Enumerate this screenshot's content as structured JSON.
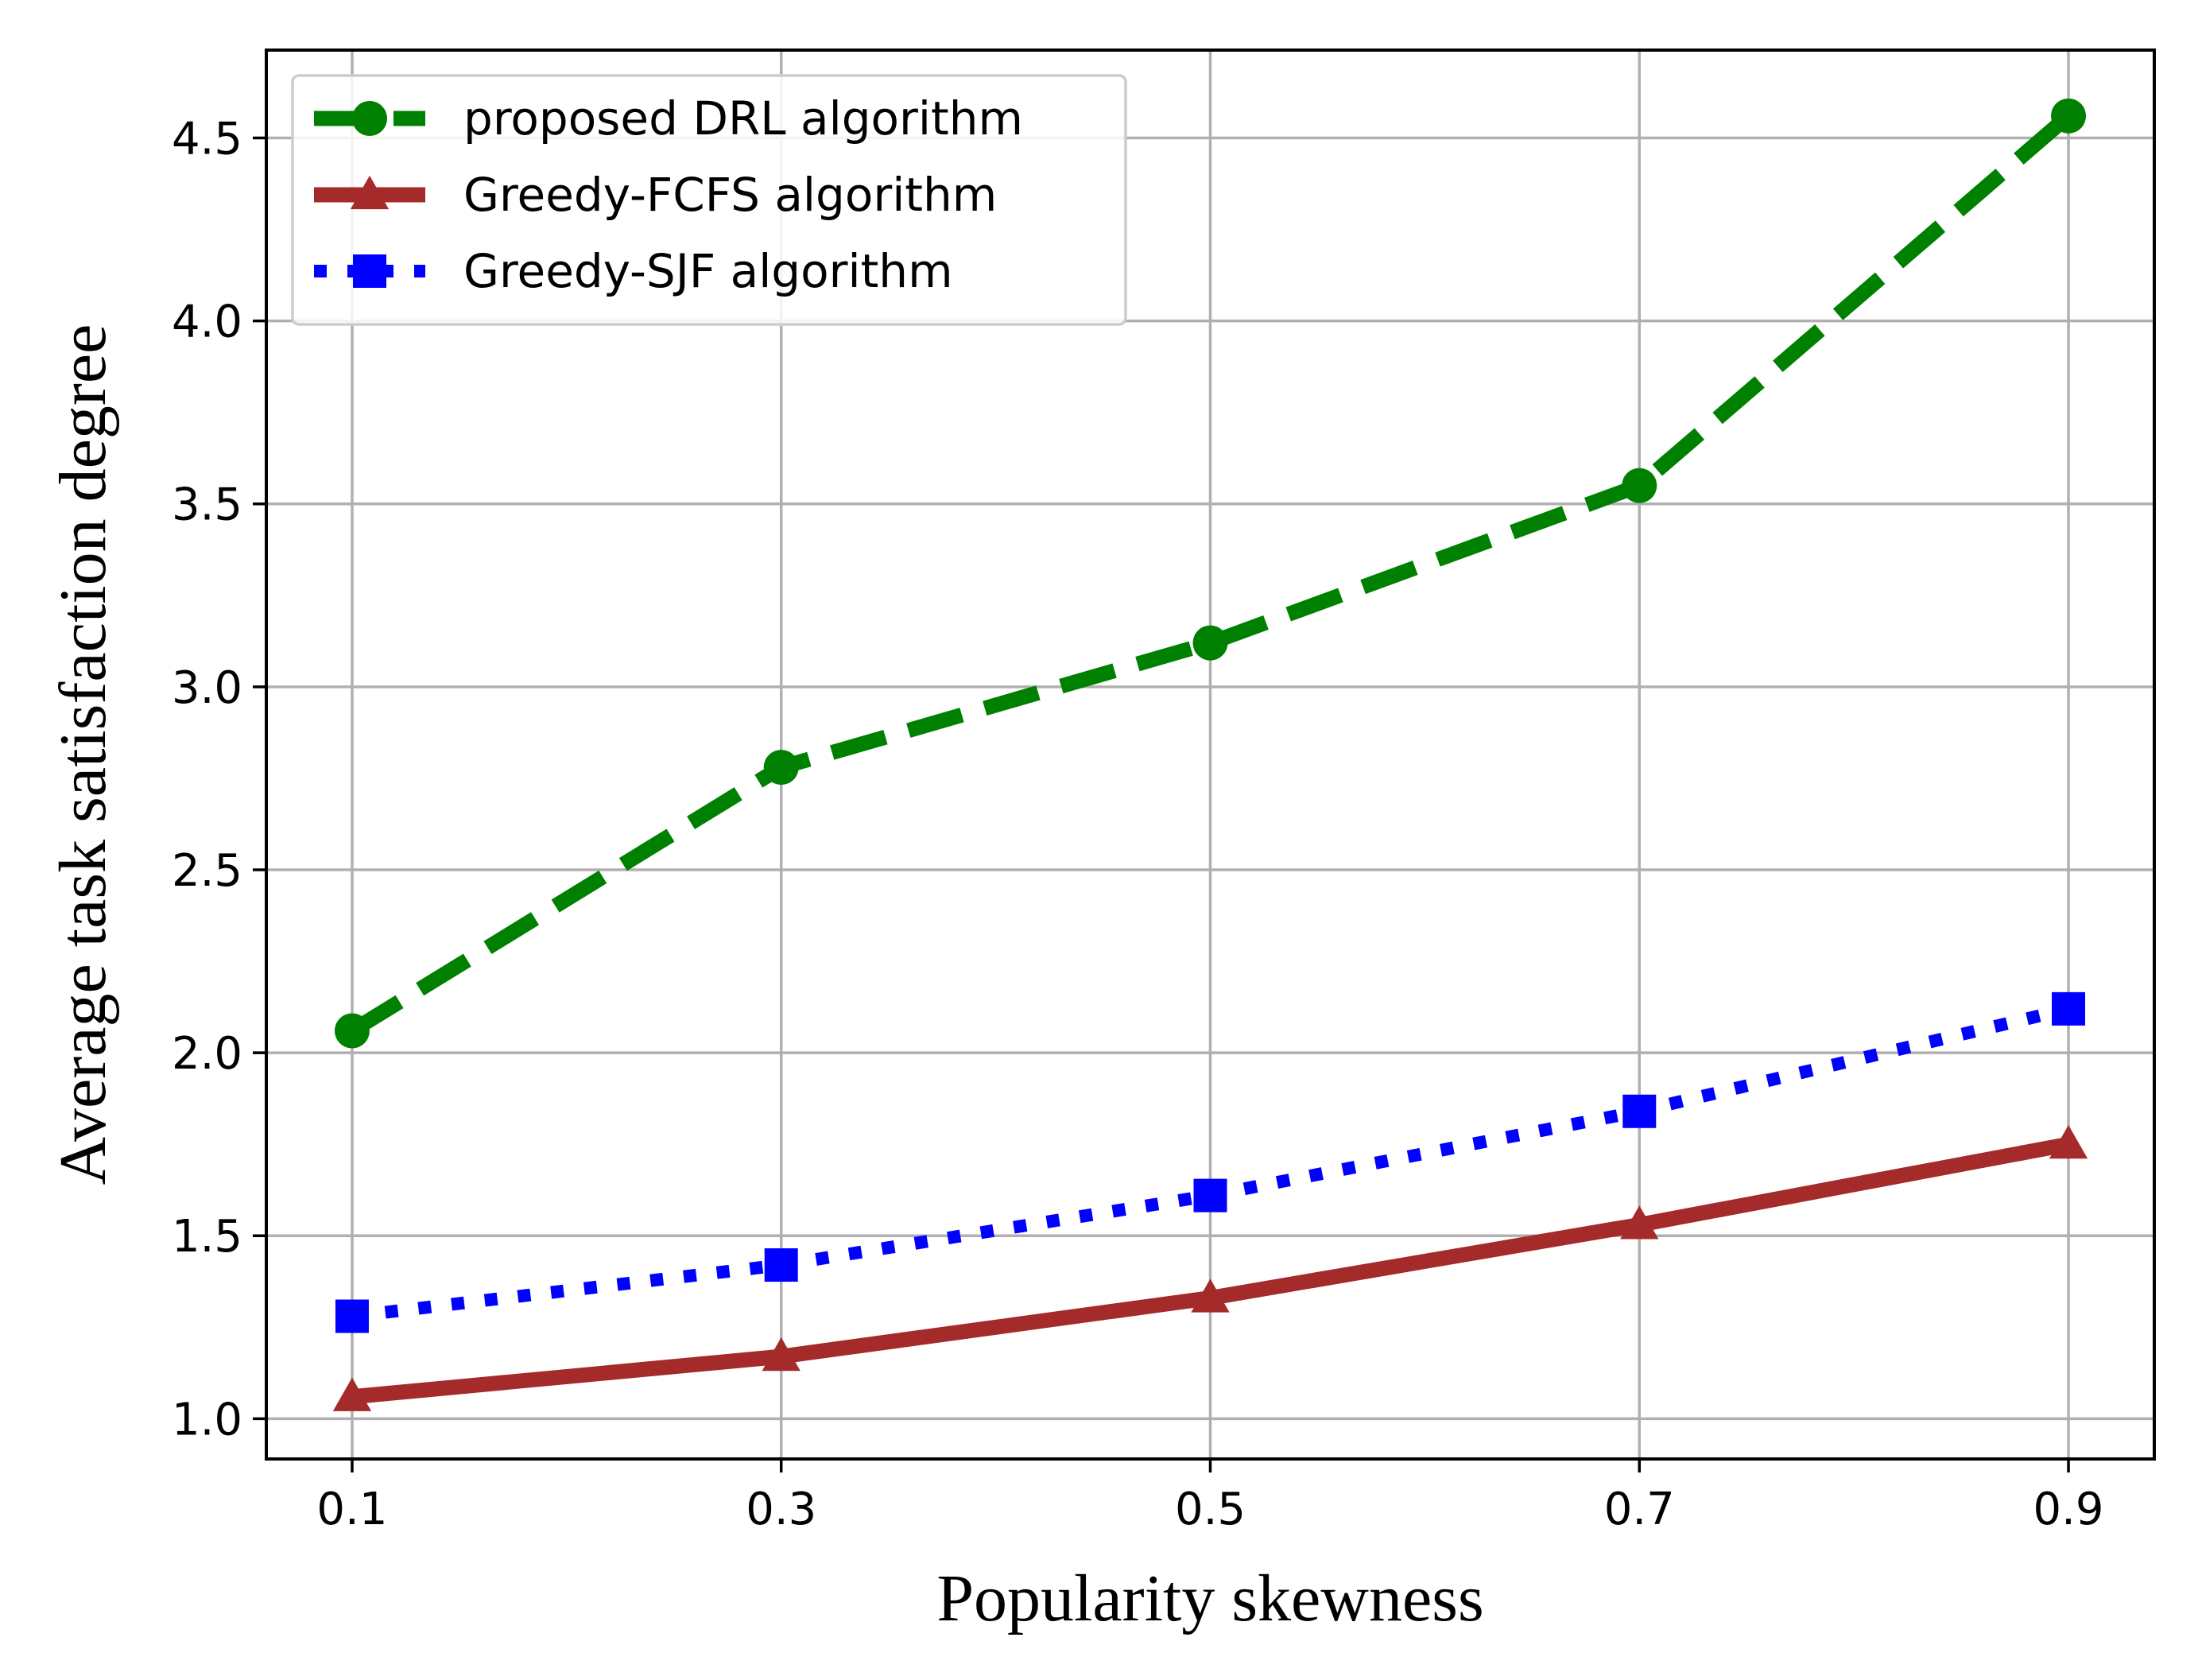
{
  "chart_data": {
    "type": "line",
    "title": "",
    "xlabel": "Popularity skewness",
    "ylabel": "Average task satisfaction degree",
    "x": [
      0.1,
      0.3,
      0.5,
      0.7,
      0.9
    ],
    "x_tick_labels": [
      "0.1",
      "0.3",
      "0.5",
      "0.7",
      "0.9"
    ],
    "xlim": [
      0.06,
      0.94
    ],
    "ylim": [
      0.89,
      4.74
    ],
    "y_ticks": [
      1.0,
      1.5,
      2.0,
      2.5,
      3.0,
      3.5,
      4.0,
      4.5
    ],
    "y_tick_labels": [
      "1.0",
      "1.5",
      "2.0",
      "2.5",
      "3.0",
      "3.5",
      "4.0",
      "4.5"
    ],
    "grid": true,
    "legend_position": "top-left",
    "series": [
      {
        "name": "proposed DRL algorithm",
        "values": [
          2.06,
          2.78,
          3.12,
          3.55,
          4.56
        ],
        "color": "#008000",
        "marker": "circle",
        "line_style": "dashed"
      },
      {
        "name": "Greedy-FCFS algorithm",
        "values": [
          1.06,
          1.17,
          1.33,
          1.53,
          1.75
        ],
        "color": "#a52a2a",
        "marker": "triangle",
        "line_style": "solid"
      },
      {
        "name": "Greedy-SJF algorithm",
        "values": [
          1.28,
          1.42,
          1.61,
          1.84,
          2.12
        ],
        "color": "#0000ff",
        "marker": "square",
        "line_style": "dotted"
      }
    ]
  }
}
